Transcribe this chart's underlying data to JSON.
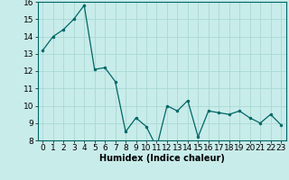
{
  "x": [
    0,
    1,
    2,
    3,
    4,
    5,
    6,
    7,
    8,
    9,
    10,
    11,
    12,
    13,
    14,
    15,
    16,
    17,
    18,
    19,
    20,
    21,
    22,
    23
  ],
  "y": [
    13.2,
    14.0,
    14.4,
    15.0,
    15.8,
    12.1,
    12.2,
    11.4,
    8.5,
    9.3,
    8.8,
    7.6,
    10.0,
    9.7,
    10.3,
    8.2,
    9.7,
    9.6,
    9.5,
    9.7,
    9.3,
    9.0,
    9.5,
    8.9
  ],
  "xlabel": "Humidex (Indice chaleur)",
  "ylim": [
    8,
    16
  ],
  "xlim_min": -0.5,
  "xlim_max": 23.5,
  "yticks": [
    8,
    9,
    10,
    11,
    12,
    13,
    14,
    15,
    16
  ],
  "xticks": [
    0,
    1,
    2,
    3,
    4,
    5,
    6,
    7,
    8,
    9,
    10,
    11,
    12,
    13,
    14,
    15,
    16,
    17,
    18,
    19,
    20,
    21,
    22,
    23
  ],
  "line_color": "#006666",
  "marker_color": "#006666",
  "bg_color": "#c8ecea",
  "grid_color": "#aad8d4",
  "xlabel_fontsize": 7,
  "tick_fontsize": 6.5
}
